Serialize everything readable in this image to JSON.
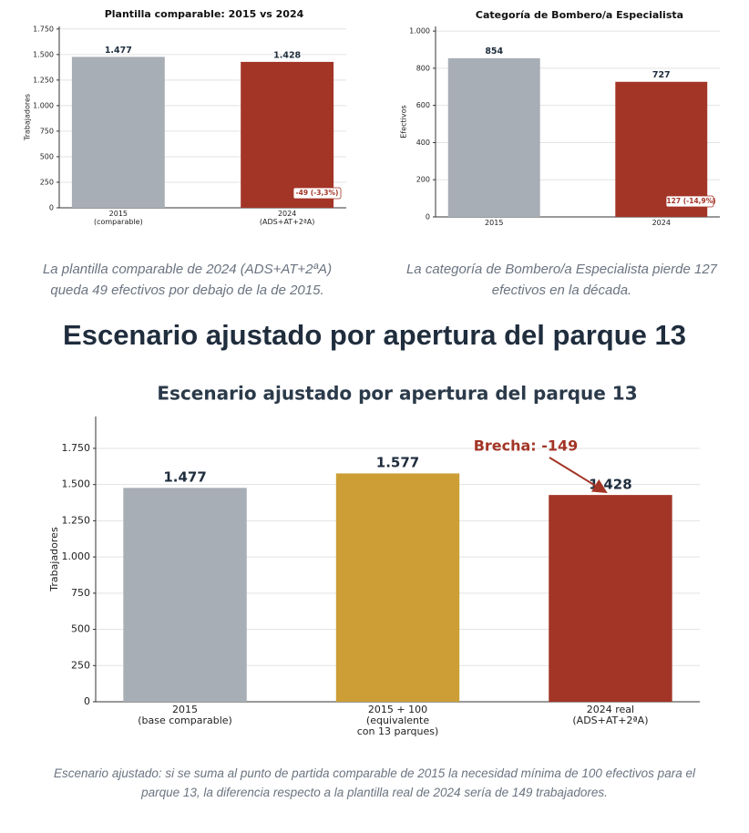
{
  "chart_data": [
    {
      "type": "bar",
      "title": "Plantilla comparable: 2015 vs 2024",
      "ylabel": "Trabajadores",
      "categories": [
        "2015\n(comparable)",
        "2024\n(ADS+AT+2ªA)"
      ],
      "values": [
        1477,
        1428
      ],
      "value_labels": [
        "1.477",
        "1.428"
      ],
      "colors": [
        "#a7aeb5",
        "#a33527"
      ],
      "ylim": [
        0,
        1775
      ],
      "yticks": [
        0,
        250,
        500,
        750,
        {
          "value": 1000,
          "label": "1.000"
        },
        {
          "value": 1250,
          "label": "1.250"
        },
        {
          "value": 1500,
          "label": "1.500"
        },
        {
          "value": 1750,
          "label": "1.750"
        }
      ],
      "grid": true,
      "annotations": [
        "-49 (-3,3%)"
      ]
    },
    {
      "type": "bar",
      "title": "Categoría de Bombero/a Especialista",
      "ylabel": "Efectivos",
      "categories": [
        "2015",
        "2024"
      ],
      "values": [
        854,
        727
      ],
      "colors": [
        "#a7aeb5",
        "#a33527"
      ],
      "ylim": [
        0,
        1025
      ],
      "yticks": [
        0,
        200,
        400,
        600,
        800,
        {
          "value": 1000,
          "label": "1.000"
        }
      ],
      "grid": true,
      "annotations": [
        "-127 (-14,9%)"
      ]
    },
    {
      "type": "bar",
      "title": "Escenario ajustado por apertura del parque 13",
      "ylabel": "Trabajadores",
      "categories": [
        "2015\n(base comparable)",
        "2015 + 100\n(equivalente\ncon 13 parques)",
        "2024 real\n(ADS+AT+2ªA)"
      ],
      "values": [
        1477,
        1577,
        1428
      ],
      "value_labels": [
        "1.477",
        "1.577",
        "1.428"
      ],
      "colors": [
        "#a7aeb5",
        "#cc9e35",
        "#a33527"
      ],
      "ylim": [
        0,
        1970
      ],
      "yticks": [
        0,
        250,
        500,
        750,
        {
          "value": 1000,
          "label": "1.000"
        },
        {
          "value": 1250,
          "label": "1.250"
        },
        {
          "value": 1500,
          "label": "1.500"
        },
        {
          "value": 1750,
          "label": "1.750"
        }
      ],
      "grid": true,
      "annotations": [
        "Brecha: -149"
      ]
    }
  ],
  "captions": [
    "La plantilla comparable de 2024 (ADS+AT+2ªA)\nqueda 49 efectivos por debajo de la de 2015.",
    "La categoría de Bombero/a Especialista pierde 127\nefectivos en la década."
  ],
  "heading": "Escenario ajustado por apertura del parque 13",
  "footnote": "Escenario ajustado: si se suma al punto de partida comparable de 2015 la necesidad mínima de 100 efectivos para el\nparque 13, la diferencia respecto a la plantilla real de 2024 sería de 149 trabajadores."
}
